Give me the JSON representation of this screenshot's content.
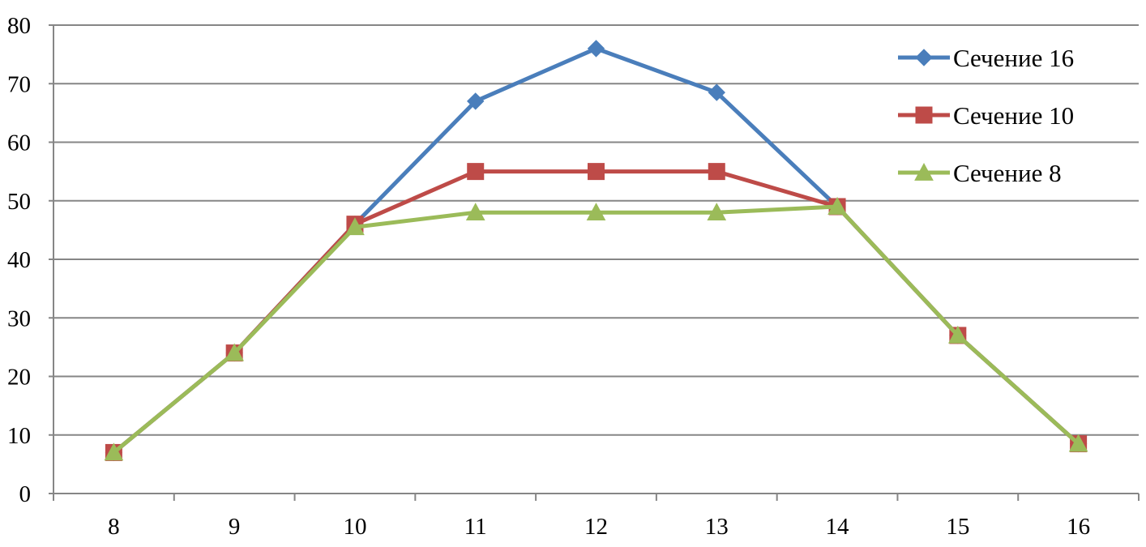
{
  "chart_data": {
    "type": "line",
    "title": "",
    "xlabel": "",
    "ylabel": "",
    "categories": [
      "8",
      "9",
      "10",
      "11",
      "12",
      "13",
      "14",
      "15",
      "16"
    ],
    "ylim": [
      0,
      80
    ],
    "y_ticks": [
      "0",
      "10",
      "20",
      "30",
      "40",
      "50",
      "60",
      "70",
      "80"
    ],
    "grid": "horizontal",
    "legend_position": "top-right",
    "series": [
      {
        "name": "Сечение 16",
        "color": "#4A7EBB",
        "marker": "diamond",
        "values": [
          7,
          24,
          46,
          67,
          76,
          68.5,
          49,
          27,
          8.5
        ]
      },
      {
        "name": "Сечение 10",
        "color": "#BE4B48",
        "marker": "square",
        "values": [
          7,
          24,
          46,
          55,
          55,
          55,
          49,
          27,
          8.5
        ]
      },
      {
        "name": "Сечение 8",
        "color": "#9BBB59",
        "marker": "triangle",
        "values": [
          7,
          24,
          45.5,
          48,
          48,
          48,
          49,
          27,
          8.5
        ]
      }
    ]
  }
}
